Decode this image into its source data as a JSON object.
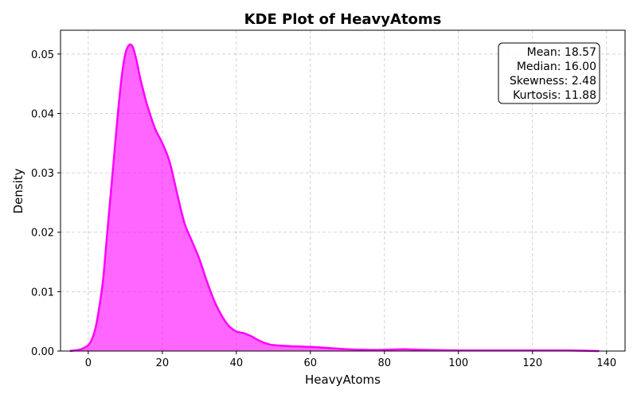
{
  "chart_data": {
    "type": "area",
    "title": "KDE Plot of HeavyAtoms",
    "xlabel": "HeavyAtoms",
    "ylabel": "Density",
    "xlim": [
      -7.5,
      145.0
    ],
    "ylim": [
      0,
      0.054
    ],
    "xticks": [
      0,
      20,
      40,
      60,
      80,
      100,
      120,
      140
    ],
    "yticks": [
      0.0,
      0.01,
      0.02,
      0.03,
      0.04,
      0.05
    ],
    "ytick_labels": [
      "0.00",
      "0.01",
      "0.02",
      "0.03",
      "0.04",
      "0.05"
    ],
    "grid": true,
    "color": "#ff00ff",
    "series": [
      {
        "x": [
          -5,
          -2,
          0,
          1,
          2,
          3,
          4,
          5,
          6,
          7,
          8,
          9,
          10,
          11,
          12,
          13,
          14,
          15,
          16,
          18,
          20,
          22,
          24,
          26,
          28,
          30,
          32,
          34,
          36,
          38,
          40,
          42,
          44,
          46,
          48,
          50,
          55,
          60,
          65,
          70,
          75,
          80,
          85,
          90,
          100,
          110,
          120,
          130,
          138
        ],
        "y": [
          0.0,
          0.0003,
          0.001,
          0.002,
          0.004,
          0.0075,
          0.012,
          0.019,
          0.026,
          0.033,
          0.04,
          0.046,
          0.05,
          0.0515,
          0.0512,
          0.049,
          0.046,
          0.0435,
          0.0412,
          0.0375,
          0.035,
          0.0318,
          0.0265,
          0.0215,
          0.0185,
          0.0155,
          0.0118,
          0.0085,
          0.006,
          0.0042,
          0.0033,
          0.003,
          0.0025,
          0.0018,
          0.0013,
          0.001,
          0.0008,
          0.0007,
          0.0005,
          0.0003,
          0.0002,
          0.0002,
          0.0003,
          0.0002,
          0.0001,
          0.0001,
          0.0001,
          0.0001,
          0.0
        ]
      }
    ]
  },
  "stats_box": {
    "lines": [
      "Mean: 18.57",
      "Median: 16.00",
      "Skewness: 2.48",
      "Kurtosis: 11.88"
    ]
  }
}
